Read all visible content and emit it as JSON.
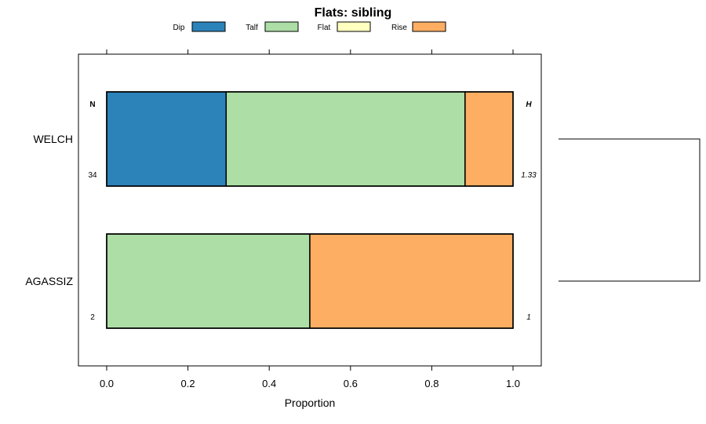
{
  "chart_data": {
    "type": "bar",
    "orientation": "horizontal",
    "stacked": true,
    "title": "Flats: sibling",
    "xlabel": "Proportion",
    "ylabel": "",
    "xlim": [
      -0.07,
      1.07
    ],
    "xticks": [
      "0.0",
      "0.2",
      "0.4",
      "0.6",
      "0.8",
      "1.0"
    ],
    "xtick_values": [
      0,
      0.2,
      0.4,
      0.6,
      0.8,
      1.0
    ],
    "categories": [
      "WELCH",
      "AGASSIZ"
    ],
    "series": [
      {
        "name": "Dip",
        "color": "#2c83ba",
        "values": [
          0.294,
          0.0
        ]
      },
      {
        "name": "Talf",
        "color": "#acdea5",
        "values": [
          0.588,
          0.5
        ]
      },
      {
        "name": "Flat",
        "color": "#ffffc0",
        "values": [
          0.0,
          0.0
        ]
      },
      {
        "name": "Rise",
        "color": "#fdae63",
        "values": [
          0.118,
          0.5
        ]
      }
    ],
    "n_header": "N",
    "h_header": "H",
    "n_values": [
      "34",
      "2"
    ],
    "h_values": [
      "1.33",
      "1"
    ],
    "legend_position": "top",
    "dendrogram": true
  }
}
